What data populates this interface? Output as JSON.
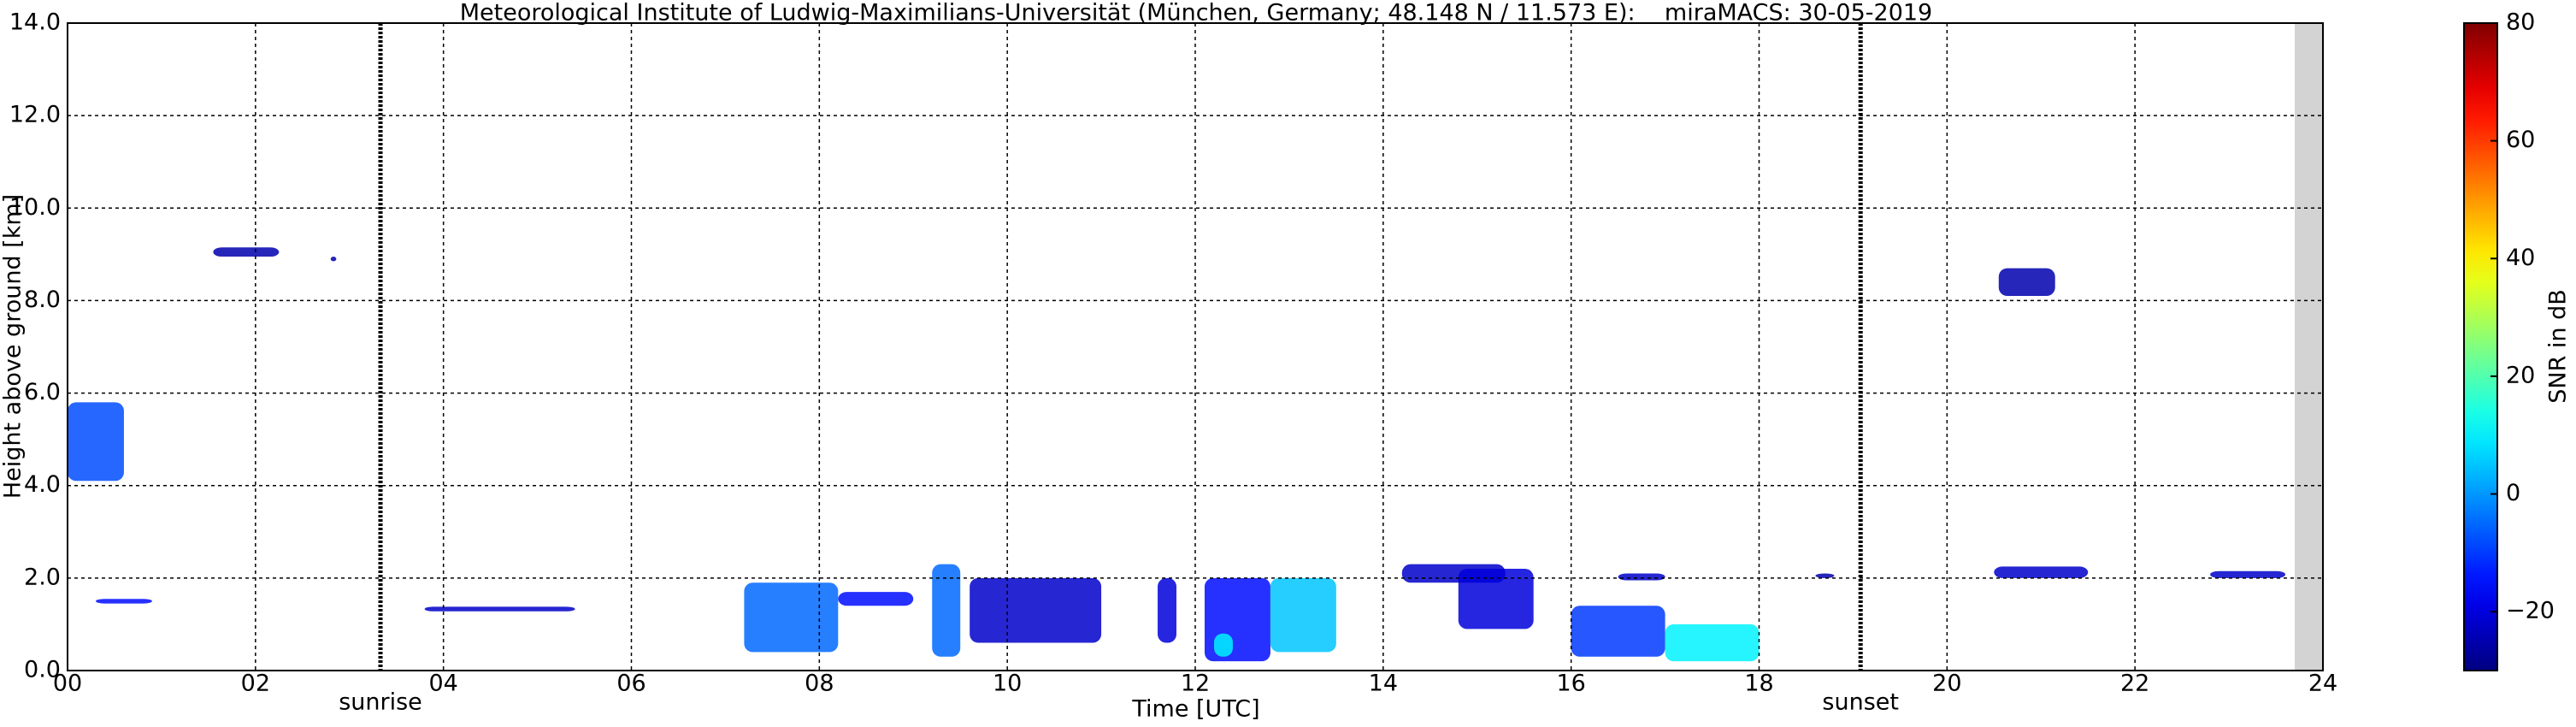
{
  "chart_data": {
    "type": "radar",
    "title": "Meteorological Institute of Ludwig-Maximilians-Universität (München, Germany; 48.148 N / 11.573 E):    miraMACS: 30-05-2019",
    "x_label": "Time [UTC]",
    "y_label": "Height above ground [km]",
    "colorbar_label": "SNR in dB",
    "xlim": [
      0,
      24
    ],
    "ylim": [
      0,
      14
    ],
    "clim": [
      -30,
      80
    ],
    "xticks": [
      {
        "value": 0,
        "label": "00"
      },
      {
        "value": 2,
        "label": "02"
      },
      {
        "value": 4,
        "label": "04"
      },
      {
        "value": 6,
        "label": "06"
      },
      {
        "value": 8,
        "label": "08"
      },
      {
        "value": 10,
        "label": "10"
      },
      {
        "value": 12,
        "label": "12"
      },
      {
        "value": 14,
        "label": "14"
      },
      {
        "value": 16,
        "label": "16"
      },
      {
        "value": 18,
        "label": "18"
      },
      {
        "value": 20,
        "label": "20"
      },
      {
        "value": 22,
        "label": "22"
      },
      {
        "value": 24,
        "label": "24"
      }
    ],
    "yticks": [
      {
        "value": 0,
        "label": "0.0"
      },
      {
        "value": 2,
        "label": "2.0"
      },
      {
        "value": 4,
        "label": "4.0"
      },
      {
        "value": 6,
        "label": "6.0"
      },
      {
        "value": 8,
        "label": "8.0"
      },
      {
        "value": 10,
        "label": "10.0"
      },
      {
        "value": 12,
        "label": "12.0"
      },
      {
        "value": 14,
        "label": "14.0"
      }
    ],
    "cticks": [
      {
        "value": -20,
        "label": "−20"
      },
      0,
      20,
      40,
      60,
      80
    ],
    "grid": true,
    "colormap": "jet",
    "no_data": [
      23.7,
      24
    ],
    "sun_events": [
      {
        "label": "sunrise",
        "x": 3.33
      },
      {
        "label": "sunset",
        "x": 19.08
      }
    ],
    "echoes": [
      {
        "x": [
          0,
          0.6
        ],
        "y": [
          4.1,
          5.8
        ],
        "snr": -8
      },
      {
        "x": [
          1.55,
          2.25
        ],
        "y": [
          8.95,
          9.15
        ],
        "snr": -25
      },
      {
        "x": [
          2.8,
          2.86
        ],
        "y": [
          8.85,
          8.95
        ],
        "snr": -25
      },
      {
        "x": [
          0.3,
          0.9
        ],
        "y": [
          1.45,
          1.55
        ],
        "snr": -15
      },
      {
        "x": [
          3.8,
          5.4
        ],
        "y": [
          1.28,
          1.38
        ],
        "snr": -22
      },
      {
        "x": [
          7.2,
          8.2
        ],
        "y": [
          0.4,
          1.9
        ],
        "snr": -5
      },
      {
        "x": [
          8.2,
          9.0
        ],
        "y": [
          1.4,
          1.7
        ],
        "snr": -15
      },
      {
        "x": [
          9.2,
          9.5
        ],
        "y": [
          0.3,
          2.3
        ],
        "snr": -5
      },
      {
        "x": [
          9.6,
          11.0
        ],
        "y": [
          0.6,
          2.0
        ],
        "snr": -22
      },
      {
        "x": [
          11.6,
          11.8
        ],
        "y": [
          0.6,
          2.0
        ],
        "snr": -20
      },
      {
        "x": [
          12.1,
          12.8
        ],
        "y": [
          0.2,
          2.0
        ],
        "snr": -15
      },
      {
        "x": [
          12.8,
          13.5
        ],
        "y": [
          0.4,
          2.0
        ],
        "snr": 5
      },
      {
        "x": [
          12.2,
          12.4
        ],
        "y": [
          0.3,
          0.8
        ],
        "snr": 10
      },
      {
        "x": [
          14.2,
          15.3
        ],
        "y": [
          1.9,
          2.3
        ],
        "snr": -22
      },
      {
        "x": [
          14.8,
          15.6
        ],
        "y": [
          0.9,
          2.2
        ],
        "snr": -20
      },
      {
        "x": [
          16.0,
          17.0
        ],
        "y": [
          0.3,
          1.4
        ],
        "snr": -10
      },
      {
        "x": [
          17.0,
          18.0
        ],
        "y": [
          0.2,
          1.0
        ],
        "snr": 10
      },
      {
        "x": [
          16.5,
          17.0
        ],
        "y": [
          1.95,
          2.1
        ],
        "snr": -22
      },
      {
        "x": [
          18.6,
          18.8
        ],
        "y": [
          2.0,
          2.1
        ],
        "snr": -25
      },
      {
        "x": [
          20.55,
          21.15
        ],
        "y": [
          8.1,
          8.7
        ],
        "snr": -25
      },
      {
        "x": [
          20.5,
          21.5
        ],
        "y": [
          2.0,
          2.25
        ],
        "snr": -22
      },
      {
        "x": [
          22.8,
          23.6
        ],
        "y": [
          2.0,
          2.15
        ],
        "snr": -22
      }
    ]
  }
}
